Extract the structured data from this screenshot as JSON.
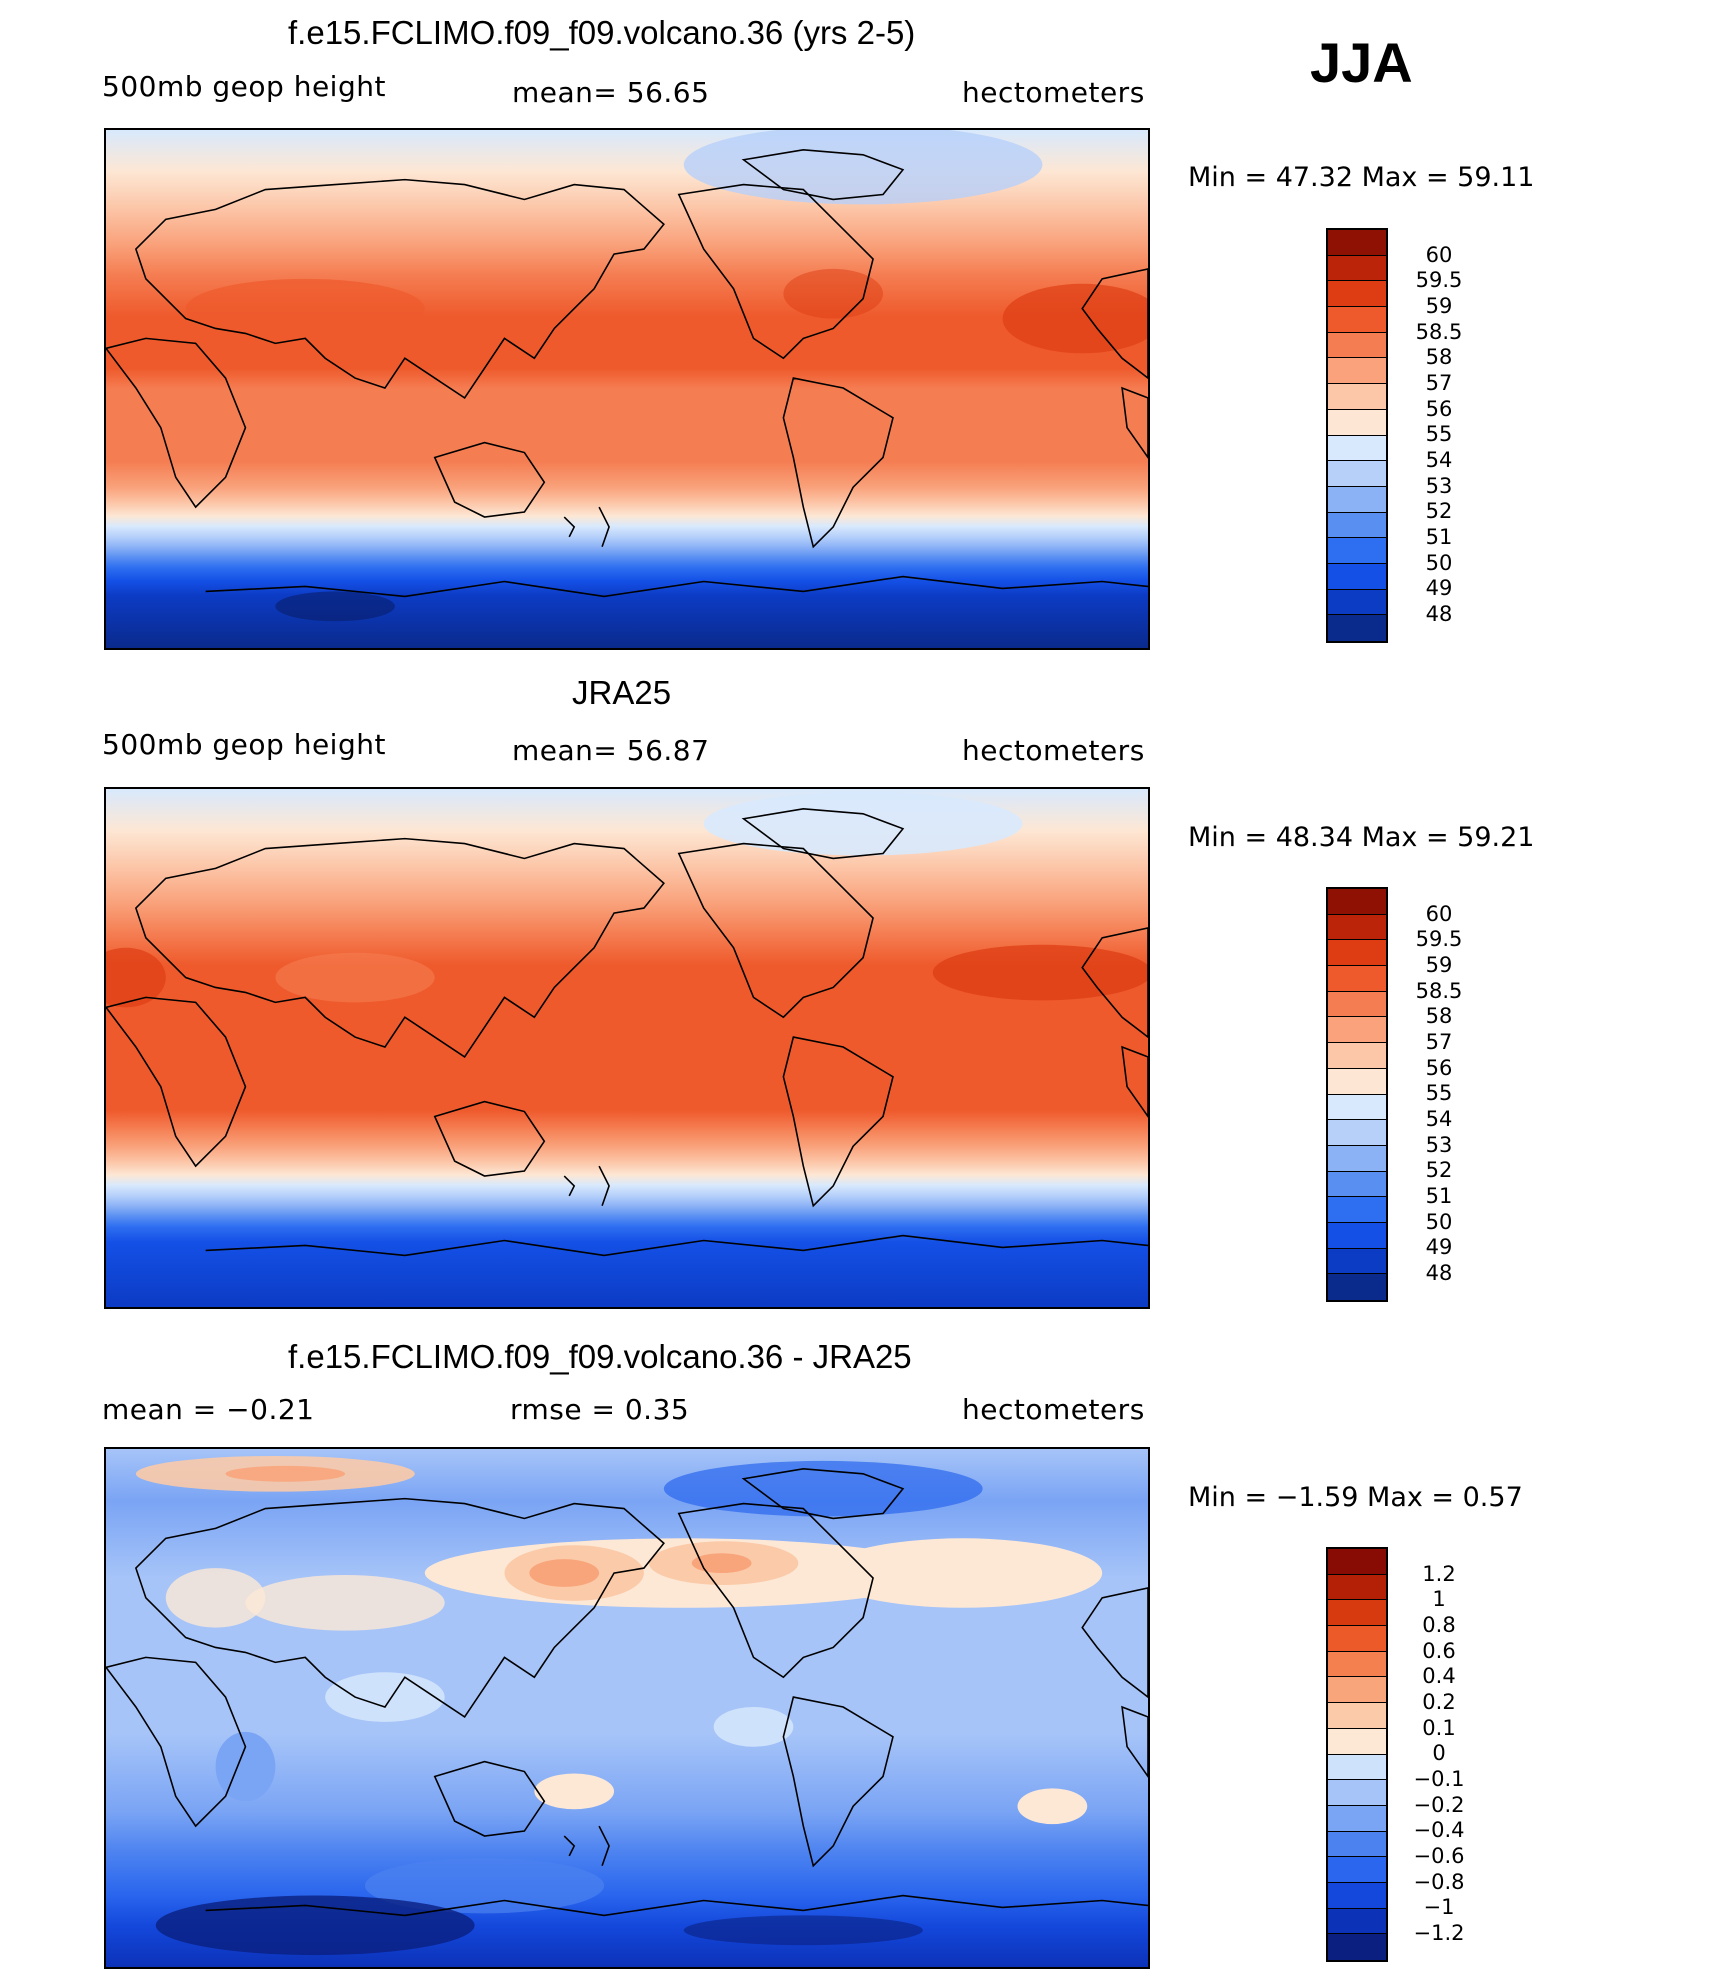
{
  "season": "JJA",
  "colors": {
    "full": [
      "#0a2a8c",
      "#0c3bc4",
      "#1450e6",
      "#2e6ef0",
      "#5a8ff2",
      "#8cb2f6",
      "#b6d0fa",
      "#d8e9fd",
      "#fde7d4",
      "#fcc6a8",
      "#f9a27b",
      "#f57d52",
      "#ee5a2c",
      "#de3d14",
      "#bb2408",
      "#8e1104"
    ],
    "diff": [
      "#0a1f80",
      "#0c32b8",
      "#1448dc",
      "#2a66ee",
      "#4c82f0",
      "#7aa4f4",
      "#a6c4f8",
      "#cfe2fc",
      "#fde8d6",
      "#fbcaa8",
      "#f8a57c",
      "#f4804f",
      "#ec5a2a",
      "#d83a10",
      "#b42006",
      "#880c03"
    ]
  },
  "panels": [
    {
      "name": "model",
      "title": "f.e15.FCLIMO.f09_f09.volcano.36 (yrs 2-5)",
      "left_label": "500mb  geop  height",
      "mid_label": "mean=   56.65",
      "right_label": "hectometers",
      "minmax": "Min =   47.32  Max =   59.11",
      "colorbar_labels": [
        "60",
        "59.5",
        "59",
        "58.5",
        "58",
        "57",
        "56",
        "55",
        "54",
        "53",
        "52",
        "51",
        "50",
        "49",
        "48"
      ]
    },
    {
      "name": "obs",
      "title": "JRA25",
      "left_label": "500mb  geop  height",
      "mid_label": "mean=   56.87",
      "right_label": "hectometers",
      "minmax": "Min =   48.34  Max =   59.21",
      "colorbar_labels": [
        "60",
        "59.5",
        "59",
        "58.5",
        "58",
        "57",
        "56",
        "55",
        "54",
        "53",
        "52",
        "51",
        "50",
        "49",
        "48"
      ]
    },
    {
      "name": "diff",
      "title": "f.e15.FCLIMO.f09_f09.volcano.36 - JRA25",
      "left_label": "mean  =    −0.21",
      "mid_label": "rmse  =     0.35",
      "right_label": "hectometers",
      "minmax": "Min =   −1.59  Max =     0.57",
      "colorbar_labels": [
        "1.2",
        "1",
        "0.8",
        "0.6",
        "0.4",
        "0.2",
        "0.1",
        "0",
        "−0.1",
        "−0.2",
        "−0.4",
        "−0.6",
        "−0.8",
        "−1",
        "−1.2"
      ]
    }
  ]
}
